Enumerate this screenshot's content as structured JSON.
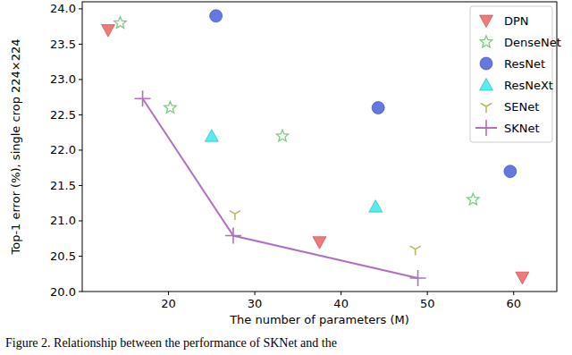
{
  "chart_data": {
    "type": "scatter",
    "x_label": "The number of parameters (M)",
    "y_label": "Top-1 error (%), single crop 224×224",
    "caption": "Figure 2. Relationship between the performance of SKNet and the",
    "xlim": [
      10,
      65
    ],
    "ylim": [
      20,
      24.1
    ],
    "xticks": [
      20,
      30,
      40,
      50,
      60
    ],
    "yticks": [
      {
        "value": 20,
        "label": "20.0"
      },
      {
        "value": 20.5,
        "label": "20.5"
      },
      {
        "value": 21,
        "label": "21.0"
      },
      {
        "value": 21.5,
        "label": "21.5"
      },
      {
        "value": 22,
        "label": "22.0"
      },
      {
        "value": 22.5,
        "label": "22.5"
      },
      {
        "value": 23,
        "label": "23.0"
      },
      {
        "value": 23.5,
        "label": "23.5"
      },
      {
        "value": 24,
        "label": "24.0"
      }
    ],
    "legend": "upper right",
    "grid": false,
    "series": [
      {
        "name": "DPN",
        "color": "#f07a7a",
        "marker": "triangle_down",
        "x": [
          13.0,
          37.5,
          61.0
        ],
        "values": [
          23.7,
          20.7,
          20.2
        ]
      },
      {
        "name": "DenseNet",
        "color": "#7fc97f",
        "marker": "star",
        "x": [
          14.4,
          20.2,
          33.2,
          55.3
        ],
        "values": [
          23.8,
          22.6,
          22.2,
          21.3
        ]
      },
      {
        "name": "ResNet",
        "color": "#6677dd",
        "marker": "circle",
        "x": [
          25.5,
          44.3,
          59.6
        ],
        "values": [
          23.9,
          22.6,
          21.7
        ]
      },
      {
        "name": "ResNeXt",
        "color": "#55eeee",
        "marker": "triangle_up",
        "x": [
          25.0,
          44.0
        ],
        "values": [
          22.2,
          21.2
        ]
      },
      {
        "name": "SENet",
        "color": "#b8b860",
        "marker": "tri_down",
        "x": [
          27.7,
          48.6
        ],
        "values": [
          21.1,
          20.6
        ]
      },
      {
        "name": "SKNet",
        "color": "#b070c0",
        "marker": "plus",
        "line_style": "solid",
        "type": "line",
        "x": [
          17.0,
          27.5,
          48.9
        ],
        "values": [
          22.73,
          20.79,
          20.19
        ]
      }
    ]
  }
}
